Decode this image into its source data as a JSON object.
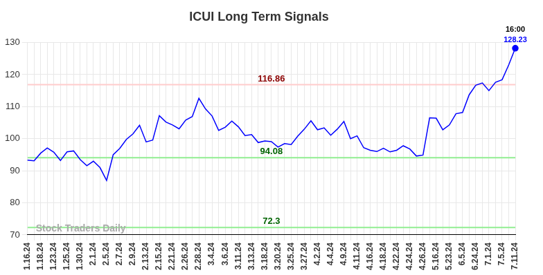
{
  "chart_data": {
    "type": "line",
    "title": "ICUI Long Term Signals",
    "categories": [
      "1.16.24",
      null,
      "1.18.24",
      null,
      "1.23.24",
      null,
      "1.25.24",
      null,
      "1.30.24",
      null,
      "2.1.24",
      null,
      "2.5.24",
      null,
      "2.7.24",
      null,
      "2.9.24",
      null,
      "2.13.24",
      null,
      "2.15.24",
      null,
      "2.21.24",
      null,
      "2.26.24",
      null,
      "2.28.24",
      null,
      "3.4.24",
      null,
      "3.6.24",
      null,
      "3.11.24",
      null,
      "3.13.24",
      null,
      "3.18.24",
      null,
      "3.20.24",
      null,
      "3.25.24",
      null,
      "3.27.24",
      null,
      "4.2.24",
      null,
      "4.4.24",
      null,
      "4.9.24",
      null,
      "4.11.24",
      null,
      "4.16.24",
      null,
      "4.18.24",
      null,
      "4.22.24",
      null,
      "4.24.24",
      null,
      "4.26.24",
      null,
      "5.16.24",
      null,
      "5.23.24",
      null,
      "6.5.24",
      null,
      "6.24.24",
      null,
      "7.1.24",
      null,
      "7.5.24",
      null,
      "7.11.24"
    ],
    "values": [
      93.3,
      93.1,
      95.5,
      97.1,
      95.8,
      93.2,
      95.9,
      96.2,
      93.5,
      91.6,
      93.0,
      91.0,
      87.0,
      95.0,
      97.0,
      99.8,
      101.5,
      104.2,
      99.0,
      99.6,
      107.2,
      105.2,
      104.3,
      103.1,
      105.8,
      106.9,
      112.6,
      109.3,
      107.1,
      102.6,
      103.6,
      105.5,
      103.7,
      101.0,
      101.3,
      98.8,
      99.3,
      99.1,
      97.4,
      98.5,
      98.2,
      100.8,
      103.0,
      105.6,
      102.8,
      103.4,
      101.1,
      103.0,
      105.4,
      100.0,
      100.9,
      97.2,
      96.4,
      96.0,
      97.0,
      95.9,
      96.4,
      97.8,
      96.8,
      94.6,
      94.9,
      106.5,
      106.4,
      102.8,
      104.3,
      107.8,
      108.2,
      113.7,
      116.7,
      117.4,
      115.0,
      117.6,
      118.4,
      123.0,
      128.23
    ],
    "color": "#0000ff",
    "ylim": [
      70,
      130
    ],
    "yticks": [
      70,
      80,
      90,
      100,
      110,
      120,
      130
    ],
    "grid": true,
    "reference_lines": [
      {
        "value": 116.86,
        "label": "116.86",
        "color": "#ffcccc",
        "label_color": "#8b0000"
      },
      {
        "value": 94.08,
        "label": "94.08",
        "color": "#90ee90",
        "label_color": "#006400"
      },
      {
        "value": 72.3,
        "label": "72.3",
        "color": "#90ee90",
        "label_color": "#006400"
      }
    ],
    "last_point_labels": [
      {
        "text": "16:00",
        "color": "#000000"
      },
      {
        "text": "128.23",
        "color": "#0000ff"
      }
    ],
    "watermark": "Stock Traders Daily"
  }
}
